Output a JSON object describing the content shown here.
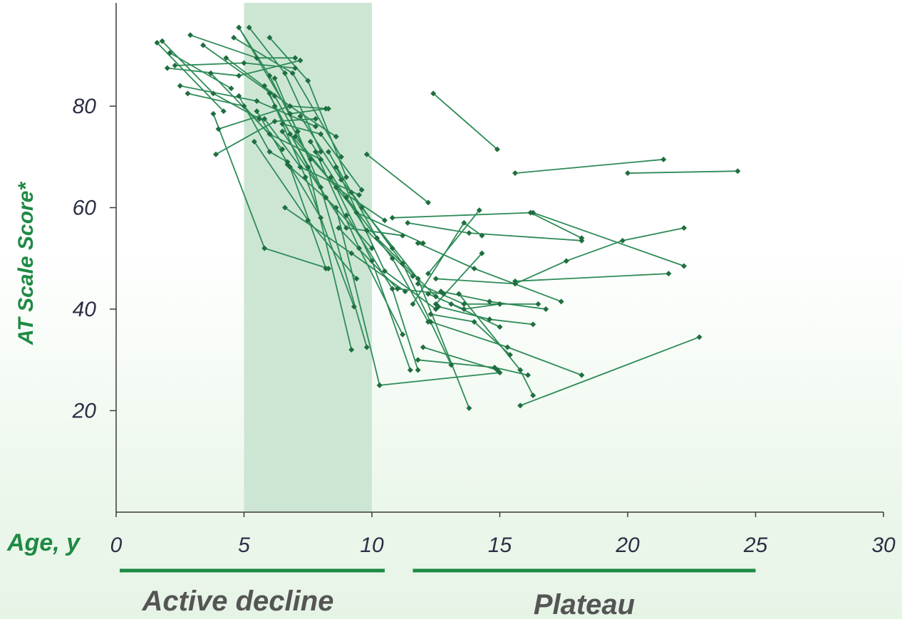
{
  "chart_data": {
    "type": "line",
    "xlabel": "Age, y",
    "ylabel": "AT Scale Score*",
    "xlim": [
      0,
      30
    ],
    "ylim": [
      0,
      100
    ],
    "x_ticks": [
      "0",
      "5",
      "10",
      "15",
      "20",
      "25",
      "30"
    ],
    "y_ticks": [
      "20",
      "40",
      "60",
      "80"
    ],
    "grid": false,
    "highlight_band": {
      "x_start": 5,
      "x_end": 10
    },
    "phases": [
      {
        "label": "Active decline",
        "x_start": 0,
        "x_end": 10.5
      },
      {
        "label": "Plateau",
        "x_start": 11.6,
        "x_end": 25
      }
    ],
    "colors": {
      "series": "#2e8b57",
      "marker": "#1f6e3f",
      "band": "#cde6d4",
      "phase_bar": "#1e8a44"
    },
    "series": [
      {
        "values": [
          [
            1.6,
            92.5
          ],
          [
            4.2,
            79.0
          ]
        ]
      },
      {
        "values": [
          [
            1.8,
            92.8
          ],
          [
            3.8,
            82.5
          ],
          [
            5.6,
            77.5
          ]
        ]
      },
      {
        "values": [
          [
            2.1,
            90.5
          ],
          [
            4.5,
            83.5
          ]
        ]
      },
      {
        "values": [
          [
            2.0,
            87.5
          ],
          [
            4.8,
            86.0
          ],
          [
            7.2,
            89.0
          ]
        ]
      },
      {
        "values": [
          [
            2.3,
            88.0
          ],
          [
            5.0,
            88.5
          ],
          [
            7.0,
            87.5
          ]
        ]
      },
      {
        "values": [
          [
            2.5,
            84.0
          ],
          [
            5.5,
            81.0
          ],
          [
            7.8,
            76.0
          ]
        ]
      },
      {
        "values": [
          [
            2.8,
            82.5
          ],
          [
            5.0,
            80.0
          ],
          [
            6.5,
            71.5
          ]
        ]
      },
      {
        "values": [
          [
            2.9,
            94.0
          ],
          [
            5.5,
            89.5
          ],
          [
            7.0,
            89.5
          ]
        ]
      },
      {
        "values": [
          [
            3.4,
            92.0
          ],
          [
            6.2,
            82.0
          ],
          [
            7.6,
            69.5
          ]
        ]
      },
      {
        "values": [
          [
            3.7,
            86.5
          ],
          [
            6.0,
            74.5
          ],
          [
            8.0,
            69.5
          ]
        ]
      },
      {
        "values": [
          [
            4.0,
            75.5
          ],
          [
            6.8,
            80.0
          ],
          [
            8.3,
            79.5
          ]
        ]
      },
      {
        "values": [
          [
            3.9,
            70.5
          ],
          [
            6.2,
            77.0
          ],
          [
            7.8,
            77.5
          ]
        ]
      },
      {
        "values": [
          [
            4.3,
            89.5
          ],
          [
            6.8,
            80.0
          ],
          [
            8.6,
            74.0
          ]
        ]
      },
      {
        "values": [
          [
            4.6,
            93.5
          ],
          [
            6.9,
            86.5
          ],
          [
            8.8,
            70.0
          ]
        ]
      },
      {
        "values": [
          [
            4.8,
            95.5
          ],
          [
            6.0,
            86.0
          ],
          [
            7.1,
            75.0
          ]
        ]
      },
      {
        "values": [
          [
            5.2,
            95.5
          ],
          [
            6.6,
            86.5
          ],
          [
            8.0,
            71.0
          ]
        ]
      },
      {
        "values": [
          [
            6.0,
            93.5
          ],
          [
            7.5,
            85.0
          ],
          [
            9.0,
            66.0
          ]
        ]
      },
      {
        "values": [
          [
            4.8,
            82.0
          ],
          [
            6.0,
            71.0
          ],
          [
            6.7,
            69.0
          ],
          [
            8.0,
            58.0
          ]
        ]
      },
      {
        "values": [
          [
            5.8,
            77.5
          ],
          [
            7.2,
            68.0
          ],
          [
            9.5,
            62.5
          ]
        ]
      },
      {
        "values": [
          [
            6.5,
            76.5
          ],
          [
            8.0,
            74.5
          ],
          [
            9.6,
            63.5
          ]
        ]
      },
      {
        "values": [
          [
            6.2,
            80.0
          ],
          [
            8.2,
            62.0
          ],
          [
            10.0,
            52.0
          ]
        ]
      },
      {
        "values": [
          [
            6.8,
            74.5
          ],
          [
            8.6,
            64.0
          ],
          [
            10.5,
            57.5
          ]
        ]
      },
      {
        "values": [
          [
            7.2,
            78.0
          ],
          [
            8.8,
            65.5
          ],
          [
            10.8,
            52.0
          ]
        ]
      },
      {
        "values": [
          [
            5.5,
            79.0
          ],
          [
            6.8,
            68.0
          ],
          [
            8.2,
            48.0
          ]
        ]
      },
      {
        "values": [
          [
            6.5,
            75.0
          ],
          [
            9.0,
            56.0
          ],
          [
            11.2,
            54.5
          ]
        ]
      },
      {
        "values": [
          [
            7.0,
            74.0
          ],
          [
            9.4,
            59.0
          ],
          [
            12.0,
            53.0
          ]
        ]
      },
      {
        "values": [
          [
            7.6,
            73.0
          ],
          [
            9.8,
            55.5
          ],
          [
            11.6,
            46.5
          ]
        ]
      },
      {
        "values": [
          [
            8.3,
            71.0
          ],
          [
            10.2,
            54.0
          ],
          [
            12.5,
            42.5
          ]
        ]
      },
      {
        "values": [
          [
            8.6,
            68.0
          ],
          [
            10.5,
            47.5
          ],
          [
            12.5,
            40.0
          ]
        ]
      },
      {
        "values": [
          [
            9.0,
            62.0
          ],
          [
            10.8,
            50.0
          ],
          [
            12.2,
            37.5
          ]
        ]
      },
      {
        "values": [
          [
            8.7,
            56.0
          ],
          [
            11.0,
            44.0
          ],
          [
            12.8,
            43.0
          ]
        ]
      },
      {
        "values": [
          [
            6.6,
            60.0
          ],
          [
            9.2,
            51.0
          ],
          [
            11.3,
            43.5
          ]
        ]
      },
      {
        "values": [
          [
            4.8,
            95.5
          ],
          [
            6.8,
            78.5
          ],
          [
            8.2,
            79.5
          ]
        ]
      },
      {
        "values": [
          [
            5.4,
            73.0
          ],
          [
            7.5,
            57.5
          ],
          [
            9.4,
            46.0
          ]
        ]
      },
      {
        "values": [
          [
            6.0,
            82.5
          ],
          [
            7.4,
            66.0
          ],
          [
            9.3,
            40.5
          ]
        ]
      },
      {
        "values": [
          [
            5.8,
            84.0
          ],
          [
            7.5,
            68.0
          ],
          [
            9.2,
            32.0
          ]
        ]
      },
      {
        "values": [
          [
            6.2,
            85.5
          ],
          [
            8.0,
            64.0
          ],
          [
            9.8,
            32.5
          ]
        ]
      },
      {
        "values": [
          [
            6.7,
            68.5
          ],
          [
            8.6,
            60.0
          ],
          [
            10.3,
            25.0
          ]
        ]
      },
      {
        "values": [
          [
            7.8,
            71.0
          ],
          [
            9.5,
            52.0
          ],
          [
            11.2,
            35.0
          ]
        ]
      },
      {
        "values": [
          [
            8.4,
            66.0
          ],
          [
            10.0,
            49.5
          ],
          [
            11.5,
            28.0
          ]
        ]
      },
      {
        "values": [
          [
            9.0,
            58.5
          ],
          [
            10.8,
            44.0
          ],
          [
            11.8,
            28.0
          ]
        ]
      },
      {
        "values": [
          [
            3.8,
            78.5
          ],
          [
            5.8,
            52.0
          ],
          [
            8.3,
            48.0
          ]
        ]
      },
      {
        "values": [
          [
            9.8,
            70.5
          ],
          [
            12.2,
            61.0
          ]
        ]
      },
      {
        "values": [
          [
            9.2,
            63.0
          ],
          [
            11.2,
            49.0
          ],
          [
            13.1,
            29.0
          ]
        ]
      },
      {
        "values": [
          [
            9.6,
            60.0
          ],
          [
            11.8,
            46.0
          ],
          [
            13.8,
            20.5
          ]
        ]
      },
      {
        "values": [
          [
            12.4,
            82.5
          ],
          [
            14.9,
            71.5
          ]
        ]
      },
      {
        "values": [
          [
            15.6,
            66.8
          ],
          [
            21.4,
            69.5
          ]
        ]
      },
      {
        "values": [
          [
            20.0,
            66.8
          ],
          [
            24.3,
            67.2
          ]
        ]
      },
      {
        "values": [
          [
            12.2,
            47.0
          ],
          [
            14.2,
            59.5
          ]
        ]
      },
      {
        "values": [
          [
            11.6,
            41.0
          ],
          [
            13.6,
            57.0
          ],
          [
            14.3,
            54.5
          ]
        ]
      },
      {
        "values": [
          [
            12.5,
            41.0
          ],
          [
            14.3,
            51.0
          ]
        ]
      },
      {
        "values": [
          [
            10.8,
            58.0
          ],
          [
            16.2,
            59.0
          ],
          [
            18.2,
            54.0
          ]
        ]
      },
      {
        "values": [
          [
            11.4,
            57.0
          ],
          [
            13.8,
            55.0
          ],
          [
            18.2,
            53.5
          ]
        ]
      },
      {
        "values": [
          [
            11.8,
            53.0
          ],
          [
            14.0,
            48.0
          ],
          [
            17.4,
            41.5
          ]
        ]
      },
      {
        "values": [
          [
            12.5,
            46.0
          ],
          [
            15.6,
            45.0
          ],
          [
            17.6,
            49.5
          ],
          [
            19.8,
            53.5
          ],
          [
            22.2,
            56.0
          ]
        ]
      },
      {
        "values": [
          [
            15.6,
            45.5
          ],
          [
            21.6,
            47.0
          ]
        ]
      },
      {
        "values": [
          [
            16.3,
            59.0
          ],
          [
            22.2,
            48.5
          ]
        ]
      },
      {
        "values": [
          [
            11.8,
            45.0
          ],
          [
            13.6,
            41.0
          ],
          [
            16.5,
            41.0
          ]
        ]
      },
      {
        "values": [
          [
            12.2,
            43.0
          ],
          [
            13.6,
            40.0
          ],
          [
            15.0,
            41.0
          ]
        ]
      },
      {
        "values": [
          [
            12.7,
            43.5
          ],
          [
            14.6,
            41.5
          ],
          [
            16.8,
            40.0
          ]
        ]
      },
      {
        "values": [
          [
            12.3,
            39.0
          ],
          [
            14.0,
            37.5
          ],
          [
            15.4,
            31.0
          ]
        ]
      },
      {
        "values": [
          [
            12.6,
            40.5
          ],
          [
            14.6,
            38.0
          ],
          [
            16.3,
            37.0
          ]
        ]
      },
      {
        "values": [
          [
            13.1,
            41.0
          ],
          [
            15.0,
            36.5
          ]
        ]
      },
      {
        "values": [
          [
            12.0,
            32.5
          ],
          [
            14.9,
            28.0
          ]
        ]
      },
      {
        "values": [
          [
            11.8,
            30.0
          ],
          [
            14.8,
            28.5
          ],
          [
            16.1,
            27.0
          ]
        ]
      },
      {
        "values": [
          [
            12.3,
            37.5
          ],
          [
            15.3,
            32.5
          ],
          [
            18.2,
            27.0
          ]
        ]
      },
      {
        "values": [
          [
            10.3,
            25.0
          ],
          [
            15.0,
            27.5
          ]
        ]
      },
      {
        "values": [
          [
            15.8,
            21.0
          ],
          [
            22.8,
            34.5
          ]
        ]
      },
      {
        "values": [
          [
            13.4,
            43.0
          ],
          [
            15.8,
            28.0
          ],
          [
            16.3,
            23.0
          ]
        ]
      }
    ]
  }
}
